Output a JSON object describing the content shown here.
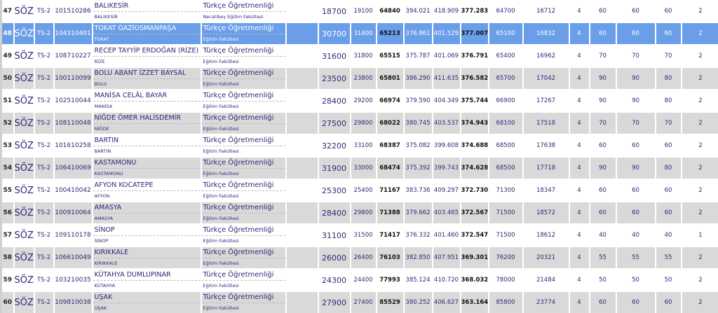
{
  "selected_rank": "48",
  "rows": [
    {
      "rank": "47",
      "type": "SÖZ",
      "score_type": "TS-2",
      "code": "101510286",
      "university": "BALIKESİR",
      "city": "BALIKESİR",
      "program": "Türkçe Öğretmenliği",
      "faculty": "Necatibey Eğitim Fakültesi",
      "v1": "18700",
      "v2": "19100",
      "v3": "64840",
      "v4": "394.021",
      "v5": "418.909",
      "v6": "377.283",
      "v7": "64700",
      "v8": "16712",
      "v9": "4",
      "v10": "60",
      "v11": "60",
      "v12": "60",
      "v13": "2"
    },
    {
      "rank": "48",
      "type": "SÖZ",
      "score_type": "TS-2",
      "code": "104310401",
      "university": "TOKAT GAZİOSMANPAŞA",
      "city": "TOKAT",
      "program": "Türkçe Öğretmenliği",
      "faculty": "Eğitim Fakültesi",
      "v1": "30700",
      "v2": "31400",
      "v3": "65213",
      "v4": "376.861",
      "v5": "401.529",
      "v6": "377.007",
      "v7": "65100",
      "v8": "16832",
      "v9": "4",
      "v10": "60",
      "v11": "60",
      "v12": "60",
      "v13": "2"
    },
    {
      "rank": "49",
      "type": "SÖZ",
      "score_type": "TS-2",
      "code": "108710227",
      "university": "RECEP TAYYİP ERDOĞAN (RİZE)",
      "city": "RİZE",
      "program": "Türkçe Öğretmenliği",
      "faculty": "Eğitim Fakültesi",
      "v1": "31600",
      "v2": "31800",
      "v3": "65515",
      "v4": "375.787",
      "v5": "401.069",
      "v6": "376.791",
      "v7": "65400",
      "v8": "16962",
      "v9": "4",
      "v10": "70",
      "v11": "70",
      "v12": "70",
      "v13": "2"
    },
    {
      "rank": "50",
      "type": "SÖZ",
      "score_type": "TS-2",
      "code": "100110099",
      "university": "BOLU ABANT İZZET BAYSAL",
      "city": "BOLU",
      "program": "Türkçe Öğretmenliği",
      "faculty": "Eğitim Fakültesi",
      "v1": "23500",
      "v2": "23800",
      "v3": "65801",
      "v4": "386.290",
      "v5": "411.635",
      "v6": "376.582",
      "v7": "65700",
      "v8": "17042",
      "v9": "4",
      "v10": "90",
      "v11": "90",
      "v12": "80",
      "v13": "2"
    },
    {
      "rank": "51",
      "type": "SÖZ",
      "score_type": "TS-2",
      "code": "102510044",
      "university": "MANİSA CELÂL BAYAR",
      "city": "MANİSA",
      "program": "Türkçe Öğretmenliği",
      "faculty": "Eğitim Fakültesi",
      "v1": "28400",
      "v2": "29200",
      "v3": "66974",
      "v4": "379.590",
      "v5": "404.349",
      "v6": "375.744",
      "v7": "66900",
      "v8": "17267",
      "v9": "4",
      "v10": "90",
      "v11": "90",
      "v12": "80",
      "v13": "2"
    },
    {
      "rank": "52",
      "type": "SÖZ",
      "score_type": "TS-2",
      "code": "108110048",
      "university": "NİĞDE ÖMER HALİSDEMİR",
      "city": "NİĞDE",
      "program": "Türkçe Öğretmenliği",
      "faculty": "Eğitim Fakültesi",
      "v1": "27500",
      "v2": "29800",
      "v3": "68022",
      "v4": "380.745",
      "v5": "403.537",
      "v6": "374.943",
      "v7": "68100",
      "v8": "17518",
      "v9": "4",
      "v10": "70",
      "v11": "70",
      "v12": "70",
      "v13": "2"
    },
    {
      "rank": "53",
      "type": "SÖZ",
      "score_type": "TS-2",
      "code": "101610258",
      "university": "BARTIN",
      "city": "BARTIN",
      "program": "Türkçe Öğretmenliği",
      "faculty": "Eğitim Fakültesi",
      "v1": "32200",
      "v2": "33100",
      "v3": "68387",
      "v4": "375.082",
      "v5": "399.608",
      "v6": "374.688",
      "v7": "68500",
      "v8": "17638",
      "v9": "4",
      "v10": "60",
      "v11": "60",
      "v12": "60",
      "v13": "2"
    },
    {
      "rank": "54",
      "type": "SÖZ",
      "score_type": "TS-2",
      "code": "106410069",
      "university": "KASTAMONU",
      "city": "KASTAMONU",
      "program": "Türkçe Öğretmenliği",
      "faculty": "Eğitim Fakültesi",
      "v1": "31900",
      "v2": "33000",
      "v3": "68474",
      "v4": "375.392",
      "v5": "399.743",
      "v6": "374.628",
      "v7": "68500",
      "v8": "17718",
      "v9": "4",
      "v10": "90",
      "v11": "90",
      "v12": "80",
      "v13": "2"
    },
    {
      "rank": "55",
      "type": "SÖZ",
      "score_type": "TS-2",
      "code": "100410042",
      "university": "AFYON KOCATEPE",
      "city": "AFYON",
      "program": "Türkçe Öğretmenliği",
      "faculty": "Eğitim Fakültesi",
      "v1": "25300",
      "v2": "25400",
      "v3": "71167",
      "v4": "383.736",
      "v5": "409.297",
      "v6": "372.730",
      "v7": "71300",
      "v8": "18347",
      "v9": "4",
      "v10": "60",
      "v11": "60",
      "v12": "60",
      "v13": "2"
    },
    {
      "rank": "56",
      "type": "SÖZ",
      "score_type": "TS-2",
      "code": "100910064",
      "university": "AMASYA",
      "city": "AMASYA",
      "program": "Türkçe Öğretmenliği",
      "faculty": "Eğitim Fakültesi",
      "v1": "28400",
      "v2": "29800",
      "v3": "71388",
      "v4": "379.662",
      "v5": "403.465",
      "v6": "372.567",
      "v7": "71500",
      "v8": "18572",
      "v9": "4",
      "v10": "60",
      "v11": "60",
      "v12": "60",
      "v13": "2"
    },
    {
      "rank": "57",
      "type": "SÖZ",
      "score_type": "TS-2",
      "code": "109110178",
      "university": "SİNOP",
      "city": "SİNOP",
      "program": "Türkçe Öğretmenliği",
      "faculty": "Eğitim Fakültesi",
      "v1": "31100",
      "v2": "31500",
      "v3": "71417",
      "v4": "376.332",
      "v5": "401.460",
      "v6": "372.547",
      "v7": "71500",
      "v8": "18612",
      "v9": "4",
      "v10": "40",
      "v11": "40",
      "v12": "40",
      "v13": "1"
    },
    {
      "rank": "58",
      "type": "SÖZ",
      "score_type": "TS-2",
      "code": "106610049",
      "university": "KIRIKKALE",
      "city": "KIRIKKALE",
      "program": "Türkçe Öğretmenliği",
      "faculty": "Eğitim Fakültesi",
      "v1": "26000",
      "v2": "26400",
      "v3": "76103",
      "v4": "382.850",
      "v5": "407.951",
      "v6": "369.301",
      "v7": "76200",
      "v8": "20321",
      "v9": "4",
      "v10": "55",
      "v11": "55",
      "v12": "55",
      "v13": "2"
    },
    {
      "rank": "59",
      "type": "SÖZ",
      "score_type": "TS-2",
      "code": "103210035",
      "university": "KÜTAHYA DUMLUPINAR",
      "city": "KÜTAHYA",
      "program": "Türkçe Öğretmenliği",
      "faculty": "Eğitim Fakültesi",
      "v1": "24300",
      "v2": "24400",
      "v3": "77993",
      "v4": "385.124",
      "v5": "410.720",
      "v6": "368.032",
      "v7": "78000",
      "v8": "21484",
      "v9": "4",
      "v10": "50",
      "v11": "50",
      "v12": "50",
      "v13": "2"
    },
    {
      "rank": "60",
      "type": "SÖZ",
      "score_type": "TS-2",
      "code": "109810038",
      "university": "UŞAK",
      "city": "UŞAK",
      "program": "Türkçe Öğretmenliği",
      "faculty": "Eğitim Fakültesi",
      "v1": "27900",
      "v2": "27400",
      "v3": "85529",
      "v4": "380.252",
      "v5": "406.627",
      "v6": "363.164",
      "v7": "85800",
      "v8": "23774",
      "v9": "4",
      "v10": "60",
      "v11": "60",
      "v12": "60",
      "v13": "2"
    }
  ]
}
